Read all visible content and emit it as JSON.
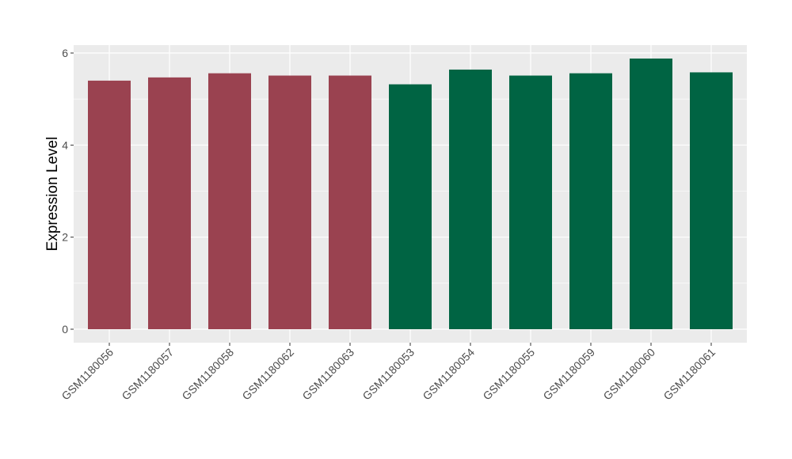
{
  "chart_data": {
    "type": "bar",
    "title": "",
    "xlabel": "",
    "ylabel": "Expression Level",
    "ylim": [
      0,
      6.3
    ],
    "yticks": [
      0,
      2,
      4,
      6
    ],
    "grid": true,
    "categories": [
      "GSM1180056",
      "GSM1180057",
      "GSM1180058",
      "GSM1180062",
      "GSM1180063",
      "GSM1180053",
      "GSM1180054",
      "GSM1180055",
      "GSM1180059",
      "GSM1180060",
      "GSM1180061"
    ],
    "values": [
      5.4,
      5.47,
      5.56,
      5.51,
      5.51,
      5.32,
      5.64,
      5.51,
      5.56,
      5.88,
      5.58
    ],
    "groups": [
      "a",
      "a",
      "a",
      "a",
      "a",
      "b",
      "b",
      "b",
      "b",
      "b",
      "b"
    ],
    "colors": {
      "a": "#9A4250",
      "b": "#006443"
    },
    "panel_background": "#EBEBEB"
  }
}
